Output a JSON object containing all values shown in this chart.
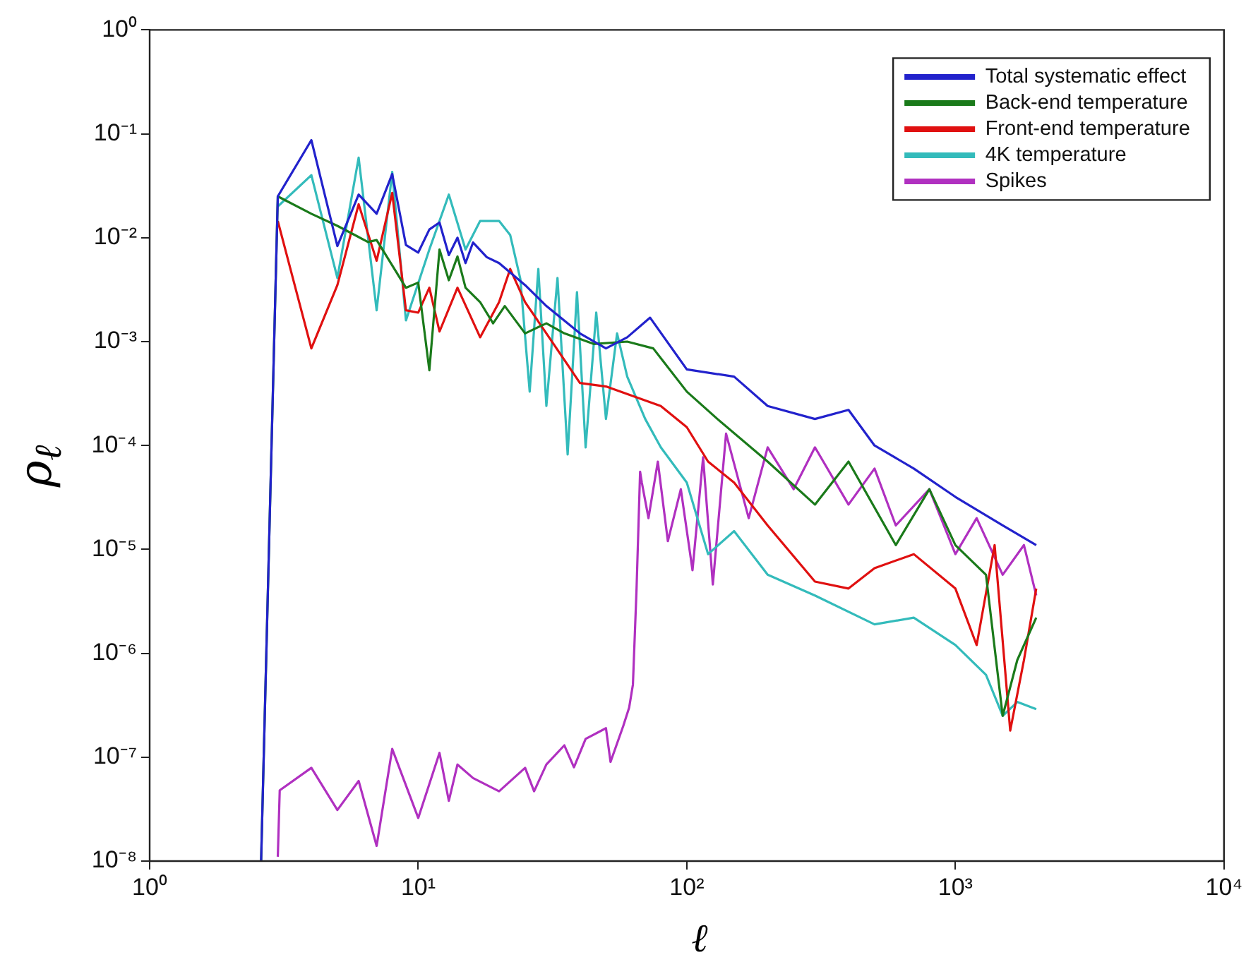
{
  "chart_data": {
    "type": "line",
    "xlabel": "ℓ",
    "ylabel": "ρ$_{ℓ}$",
    "log": "xy",
    "grid": false,
    "legend": "top right",
    "marker": "none",
    "line_style": "solid",
    "xlim": [
      1,
      10000
    ],
    "xticks": [
      {
        "value": 1,
        "label": "10⁰"
      },
      {
        "value": 10,
        "label": "10¹"
      },
      {
        "value": 100,
        "label": "10²"
      },
      {
        "value": 1000,
        "label": "10³"
      },
      {
        "value": 10000,
        "label": "10⁴"
      }
    ],
    "ylim": [
      1e-08,
      1
    ],
    "yticks": [
      {
        "value": 1e-08,
        "label": "10⁻⁸"
      },
      {
        "value": 1e-07,
        "label": "10⁻⁷"
      },
      {
        "value": 1e-06,
        "label": "10⁻⁶"
      },
      {
        "value": 1e-05,
        "label": "10⁻⁵"
      },
      {
        "value": 0.0001,
        "label": "10⁻⁴"
      },
      {
        "value": 0.001,
        "label": "10⁻³"
      },
      {
        "value": 0.01,
        "label": "10⁻²"
      },
      {
        "value": 0.1,
        "label": "10⁻¹"
      },
      {
        "value": 1,
        "label": "10⁰"
      }
    ],
    "series": [
      {
        "name": "Total systematic effect",
        "color": "#2222cc",
        "x": [
          2.6,
          3,
          4,
          5,
          6,
          7,
          8,
          9,
          10,
          11,
          12,
          13,
          14,
          15,
          16,
          18,
          20,
          25,
          30,
          40,
          50,
          60,
          73,
          100,
          150,
          200,
          300,
          400,
          500,
          700,
          1000,
          1500,
          2000
        ],
        "values": [
          1e-08,
          0.025,
          0.087,
          0.0083,
          0.026,
          0.017,
          0.041,
          0.0085,
          0.0072,
          0.012,
          0.014,
          0.0068,
          0.01,
          0.0057,
          0.009,
          0.0065,
          0.0057,
          0.0035,
          0.0022,
          0.0012,
          0.00086,
          0.0011,
          0.0017,
          0.00054,
          0.00046,
          0.00024,
          0.00018,
          0.00022,
          0.0001,
          6e-05,
          3.2e-05,
          1.7e-05,
          1.1e-05
        ]
      },
      {
        "name": "Back-end temperature",
        "color": "#1a7a1a",
        "x": [
          2.6,
          3,
          4,
          5,
          6.5,
          7,
          9,
          10,
          11,
          12,
          13,
          14,
          15,
          17,
          19,
          21,
          25,
          30,
          35,
          45,
          60,
          75,
          100,
          130,
          200,
          300,
          400,
          600,
          800,
          1000,
          1300,
          1500,
          1700,
          2000
        ],
        "values": [
          1e-08,
          0.025,
          0.017,
          0.013,
          0.0091,
          0.0095,
          0.0033,
          0.0037,
          0.00053,
          0.0077,
          0.0039,
          0.0066,
          0.0033,
          0.0024,
          0.0015,
          0.0022,
          0.0012,
          0.0015,
          0.0012,
          0.00095,
          0.001,
          0.00086,
          0.00033,
          0.00018,
          7e-05,
          2.7e-05,
          7e-05,
          1.1e-05,
          3.8e-05,
          1.1e-05,
          5.7e-06,
          2.5e-07,
          8.6e-07,
          2.2e-06
        ]
      },
      {
        "name": "Front-end temperature",
        "color": "#e01010",
        "x": [
          3,
          4,
          5,
          6,
          7,
          8,
          9,
          10,
          11,
          12,
          14,
          17,
          20,
          22,
          25,
          30,
          40,
          50,
          80,
          100,
          120,
          150,
          200,
          300,
          400,
          500,
          700,
          1000,
          1200,
          1400,
          1600,
          1800,
          2000
        ],
        "values": [
          0.0145,
          0.00086,
          0.0035,
          0.021,
          0.006,
          0.027,
          0.002,
          0.0019,
          0.0033,
          0.00125,
          0.0033,
          0.0011,
          0.0024,
          0.005,
          0.0024,
          0.0012,
          0.0004,
          0.00037,
          0.00024,
          0.00015,
          7e-05,
          4.4e-05,
          1.7e-05,
          4.9e-06,
          4.2e-06,
          6.6e-06,
          9e-06,
          4.2e-06,
          1.2e-06,
          1.1e-05,
          1.8e-07,
          8.6e-07,
          4.2e-06
        ]
      },
      {
        "name": "4K temperature",
        "color": "#33bbbb",
        "x": [
          3,
          4,
          5,
          6,
          7,
          8,
          9,
          11,
          13,
          15,
          17,
          20,
          22,
          24,
          26,
          28,
          30,
          33,
          36,
          39,
          42,
          46,
          50,
          55,
          60,
          70,
          80,
          100,
          120,
          150,
          200,
          300,
          500,
          700,
          1000,
          1300,
          1500,
          1700,
          2000
        ],
        "values": [
          0.02,
          0.04,
          0.0041,
          0.059,
          0.002,
          0.043,
          0.0016,
          0.0077,
          0.026,
          0.0077,
          0.0145,
          0.0145,
          0.0106,
          0.004,
          0.00033,
          0.005,
          0.00024,
          0.0041,
          8.2e-05,
          0.003,
          9.6e-05,
          0.0019,
          0.00018,
          0.0012,
          0.00046,
          0.00018,
          9.6e-05,
          4.4e-05,
          9e-06,
          1.5e-05,
          5.7e-06,
          3.6e-06,
          1.9e-06,
          2.2e-06,
          1.2e-06,
          6.2e-07,
          2.5e-07,
          3.4e-07,
          2.9e-07
        ]
      },
      {
        "name": "Spikes",
        "color": "#b030c0",
        "x": [
          3,
          3.05,
          4,
          5,
          6,
          7,
          8,
          10,
          12,
          13,
          14,
          16,
          20,
          25,
          27,
          30,
          35,
          38,
          42,
          50,
          52,
          58,
          61,
          63,
          65,
          67,
          68,
          72,
          78,
          85,
          95,
          105,
          115,
          125,
          140,
          170,
          200,
          250,
          300,
          400,
          500,
          600,
          800,
          1000,
          1200,
          1500,
          1800,
          2000
        ],
        "values": [
          1.1e-08,
          4.8e-08,
          7.9e-08,
          3.1e-08,
          5.9e-08,
          1.4e-08,
          1.2e-07,
          2.6e-08,
          1.1e-07,
          3.8e-08,
          8.5e-08,
          6.3e-08,
          4.7e-08,
          7.9e-08,
          4.7e-08,
          8.5e-08,
          1.3e-07,
          8e-08,
          1.5e-07,
          1.9e-07,
          9e-08,
          2e-07,
          3e-07,
          5e-07,
          4.2e-06,
          5.6e-05,
          4.4e-05,
          2e-05,
          7e-05,
          1.2e-05,
          3.8e-05,
          6.3e-06,
          7.7e-05,
          4.6e-06,
          0.00013,
          2e-05,
          9.6e-05,
          3.8e-05,
          9.6e-05,
          2.7e-05,
          6e-05,
          1.7e-05,
          3.8e-05,
          9e-06,
          2e-05,
          5.7e-06,
          1.1e-05,
          3.6e-06
        ]
      }
    ]
  }
}
